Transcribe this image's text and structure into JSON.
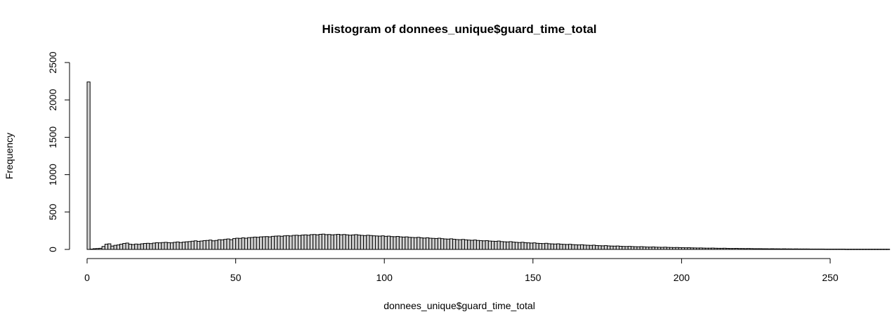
{
  "chart_data": {
    "type": "bar",
    "title": "Histogram of donnees_unique$guard_time_total",
    "xlabel": "donnees_unique$guard_time_total",
    "ylabel": "Frequency",
    "xlim": [
      0,
      260
    ],
    "ylim": [
      0,
      2500
    ],
    "xticks": [
      0,
      50,
      100,
      150,
      200,
      250
    ],
    "yticks": [
      0,
      500,
      1000,
      1500,
      2000,
      2500
    ],
    "bin_width": 1,
    "bins_start": 0,
    "values": [
      2240,
      5,
      10,
      12,
      15,
      40,
      70,
      75,
      45,
      55,
      60,
      70,
      80,
      85,
      70,
      65,
      72,
      68,
      75,
      80,
      82,
      78,
      85,
      90,
      88,
      92,
      95,
      90,
      88,
      95,
      100,
      92,
      98,
      102,
      105,
      110,
      115,
      108,
      112,
      118,
      120,
      125,
      115,
      120,
      130,
      128,
      135,
      140,
      130,
      145,
      150,
      148,
      155,
      150,
      158,
      160,
      165,
      162,
      168,
      170,
      172,
      168,
      175,
      178,
      180,
      176,
      182,
      185,
      180,
      188,
      190,
      186,
      192,
      195,
      190,
      198,
      200,
      195,
      202,
      205,
      198,
      200,
      195,
      198,
      202,
      196,
      200,
      195,
      190,
      194,
      198,
      192,
      188,
      185,
      190,
      186,
      182,
      180,
      178,
      182,
      175,
      178,
      172,
      170,
      174,
      168,
      165,
      168,
      162,
      160,
      158,
      162,
      155,
      152,
      156,
      150,
      148,
      146,
      150,
      144,
      140,
      138,
      142,
      136,
      132,
      130,
      134,
      128,
      125,
      122,
      126,
      120,
      118,
      115,
      118,
      112,
      110,
      108,
      112,
      105,
      102,
      100,
      104,
      98,
      95,
      92,
      96,
      90,
      88,
      85,
      88,
      82,
      80,
      78,
      82,
      76,
      74,
      72,
      75,
      70,
      68,
      66,
      69,
      64,
      62,
      60,
      63,
      58,
      56,
      54,
      57,
      52,
      50,
      48,
      51,
      47,
      45,
      44,
      46,
      42,
      40,
      39,
      41,
      38,
      36,
      35,
      37,
      34,
      32,
      31,
      33,
      30,
      29,
      28,
      30,
      27,
      26,
      25,
      26,
      24,
      23,
      22,
      23,
      21,
      20,
      19,
      20,
      18,
      17,
      17,
      18,
      16,
      15,
      15,
      16,
      14,
      13,
      13,
      14,
      12,
      12,
      11,
      12,
      11,
      10,
      10,
      10,
      9,
      9,
      8,
      9,
      8,
      8,
      7,
      8,
      7,
      7,
      6,
      7,
      6,
      6,
      6,
      6,
      5,
      5,
      5,
      5,
      5,
      4,
      4,
      4,
      4,
      4,
      4,
      4,
      3,
      3,
      3,
      3,
      3,
      3,
      3,
      3,
      3,
      3,
      3,
      3,
      3,
      3,
      3
    ]
  }
}
